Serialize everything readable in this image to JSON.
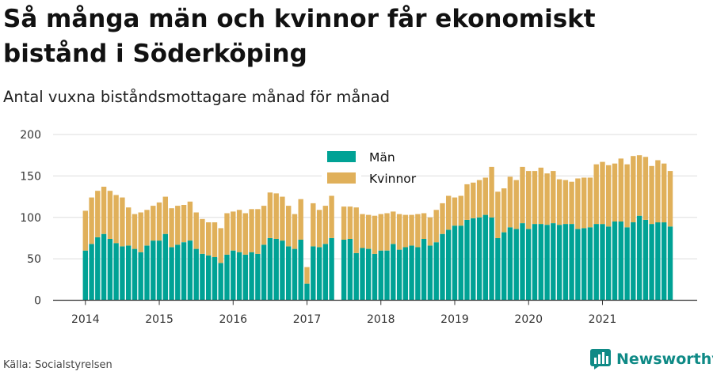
{
  "title": "Så många män och kvinnor får ekonomiskt bistånd i Söderköping",
  "subtitle": "Antal vuxna biståndsmottagare månad för månad",
  "source": "Källa: Socialstyrelsen",
  "brand": {
    "name": "Newsworthy",
    "icon": "bar-chart-logo-icon",
    "color": "#0f8a86"
  },
  "colors": {
    "men": "#00a295",
    "women": "#e0b05a",
    "grid": "#dddddd",
    "axis": "#333333"
  },
  "chart_data": {
    "type": "bar",
    "stacked": true,
    "legend_position": "top-center",
    "grid": true,
    "ylim": [
      0,
      200
    ],
    "y_ticks": [
      "0",
      "50",
      "100",
      "150",
      "200"
    ],
    "x_ticks": [
      "2014",
      "2015",
      "2016",
      "2017",
      "2018",
      "2019",
      "2020",
      "2021"
    ],
    "x_start": "2014-01",
    "series": [
      {
        "name": "Män",
        "values": [
          60,
          68,
          76,
          80,
          74,
          69,
          65,
          66,
          62,
          58,
          66,
          72,
          72,
          80,
          64,
          67,
          70,
          72,
          62,
          56,
          54,
          52,
          45,
          55,
          60,
          58,
          55,
          58,
          56,
          67,
          75,
          74,
          72,
          65,
          62,
          73,
          20,
          65,
          64,
          68,
          75,
          null,
          73,
          74,
          57,
          63,
          62,
          56,
          60,
          60,
          68,
          61,
          64,
          66,
          64,
          74,
          66,
          70,
          80,
          85,
          90,
          90,
          97,
          99,
          100,
          103,
          100,
          75,
          82,
          88,
          86,
          93,
          86,
          92,
          92,
          91,
          93,
          91,
          92,
          92,
          86,
          87,
          88,
          92,
          92,
          89,
          95,
          95,
          88,
          94,
          102,
          97,
          92,
          94,
          94,
          89
        ]
      },
      {
        "name": "Kvinnor",
        "values": [
          48,
          56,
          56,
          57,
          58,
          58,
          59,
          46,
          42,
          48,
          43,
          42,
          46,
          45,
          47,
          47,
          45,
          47,
          44,
          42,
          40,
          42,
          42,
          50,
          47,
          51,
          50,
          52,
          54,
          47,
          55,
          55,
          53,
          49,
          42,
          49,
          20,
          52,
          45,
          46,
          51,
          null,
          40,
          39,
          55,
          41,
          41,
          46,
          44,
          45,
          39,
          43,
          39,
          37,
          40,
          31,
          34,
          39,
          37,
          41,
          34,
          36,
          43,
          43,
          45,
          45,
          61,
          56,
          53,
          61,
          59,
          68,
          70,
          64,
          68,
          62,
          63,
          55,
          53,
          51,
          61,
          61,
          60,
          72,
          75,
          74,
          70,
          76,
          76,
          80,
          73,
          76,
          70,
          75,
          71,
          67
        ]
      }
    ]
  }
}
